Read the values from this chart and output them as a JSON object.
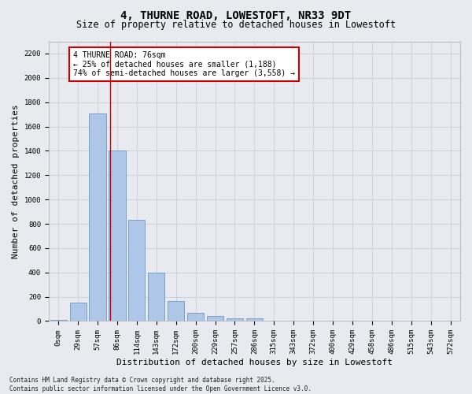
{
  "title_line1": "4, THURNE ROAD, LOWESTOFT, NR33 9DT",
  "title_line2": "Size of property relative to detached houses in Lowestoft",
  "xlabel": "Distribution of detached houses by size in Lowestoft",
  "ylabel": "Number of detached properties",
  "background_color": "#e8eaf0",
  "bar_color": "#aec6e8",
  "bar_edge_color": "#5b8db8",
  "categories": [
    "0sqm",
    "29sqm",
    "57sqm",
    "86sqm",
    "114sqm",
    "143sqm",
    "172sqm",
    "200sqm",
    "229sqm",
    "257sqm",
    "286sqm",
    "315sqm",
    "343sqm",
    "372sqm",
    "400sqm",
    "429sqm",
    "458sqm",
    "486sqm",
    "515sqm",
    "543sqm",
    "572sqm"
  ],
  "values": [
    10,
    155,
    1710,
    1400,
    835,
    400,
    165,
    65,
    40,
    25,
    25,
    0,
    0,
    0,
    0,
    0,
    0,
    0,
    0,
    0,
    0
  ],
  "ylim": [
    0,
    2300
  ],
  "yticks": [
    0,
    200,
    400,
    600,
    800,
    1000,
    1200,
    1400,
    1600,
    1800,
    2000,
    2200
  ],
  "annotation_text": "4 THURNE ROAD: 76sqm\n← 25% of detached houses are smaller (1,188)\n74% of semi-detached houses are larger (3,558) →",
  "annotation_box_color": "#cc0000",
  "footer_line1": "Contains HM Land Registry data © Crown copyright and database right 2025.",
  "footer_line2": "Contains public sector information licensed under the Open Government Licence v3.0.",
  "grid_color": "#c8d0de",
  "title_fontsize": 10,
  "subtitle_fontsize": 8.5,
  "tick_fontsize": 6.5,
  "ylabel_fontsize": 8,
  "xlabel_fontsize": 8,
  "annotation_fontsize": 7,
  "footer_fontsize": 5.5
}
